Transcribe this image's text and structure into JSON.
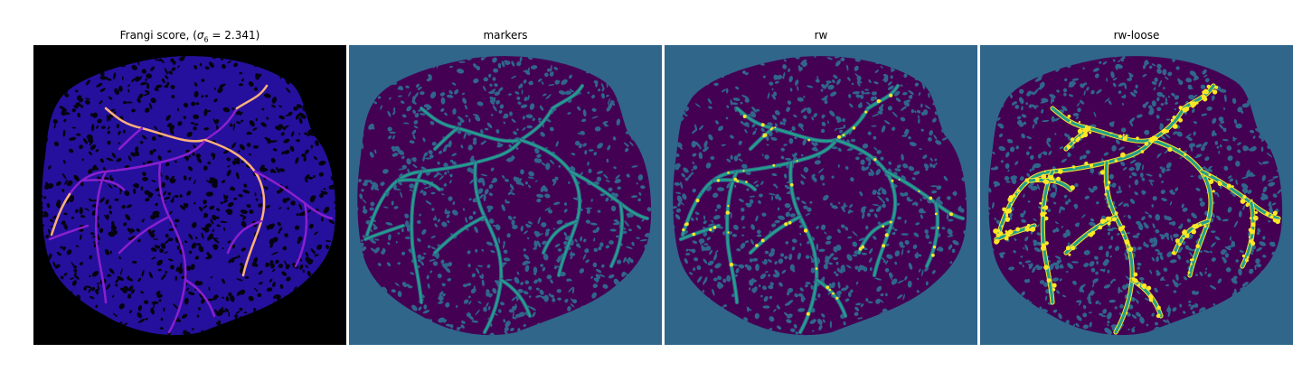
{
  "figure": {
    "panels": [
      {
        "id": "frangi",
        "title_prefix": "Frangi score, (",
        "title_sigma": "σ",
        "title_sub": "6",
        "title_suffix": " = 2.341)",
        "colors": {
          "background": "#000000",
          "tissue": "#24109c",
          "mesh": "#06030f",
          "vessel": "#8a1fd0",
          "vessel_bright": "#ffb07a"
        }
      },
      {
        "id": "markers",
        "title": "markers",
        "colors": {
          "background": "#30668a",
          "tissue": "#440154",
          "vessel": "#23a08a"
        }
      },
      {
        "id": "rw",
        "title": "rw",
        "colors": {
          "background": "#30668a",
          "tissue": "#440154",
          "vessel": "#23a08a",
          "highlight": "#fde725"
        }
      },
      {
        "id": "rw-loose",
        "title": "rw-loose",
        "colors": {
          "background": "#30668a",
          "tissue": "#440154",
          "vessel": "#23a08a",
          "highlight": "#fde725"
        }
      }
    ]
  }
}
